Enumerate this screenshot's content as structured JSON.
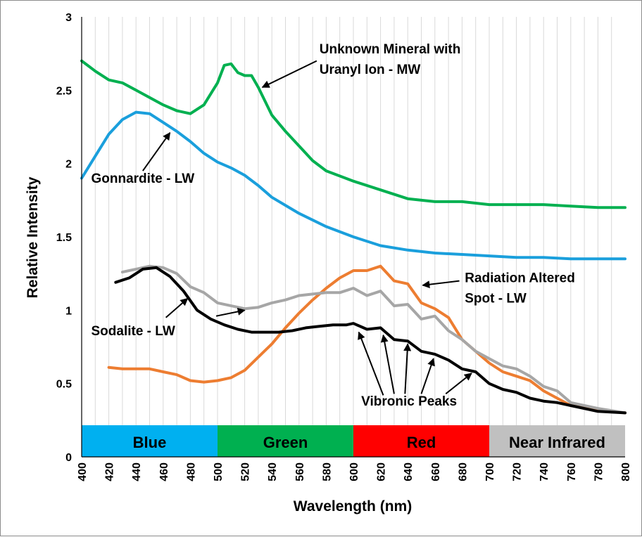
{
  "chart_data": {
    "type": "line",
    "title": "",
    "xlabel": "Wavelength (nm)",
    "ylabel": "Relative Intensity",
    "xlim": [
      400,
      800
    ],
    "ylim": [
      0,
      3
    ],
    "grid": "vertical",
    "x_ticks": [
      "400",
      "420",
      "440",
      "460",
      "480",
      "500",
      "520",
      "540",
      "560",
      "580",
      "600",
      "620",
      "640",
      "660",
      "680",
      "700",
      "720",
      "740",
      "760",
      "780",
      "800"
    ],
    "y_ticks": [
      "0",
      "0.5",
      "1",
      "1.5",
      "2",
      "2.5",
      "3"
    ],
    "bands": [
      {
        "label": "Blue",
        "from": 400,
        "to": 500,
        "color": "#00b0f0",
        "text_color": "#000000"
      },
      {
        "label": "Green",
        "from": 500,
        "to": 600,
        "color": "#00b050",
        "text_color": "#000000"
      },
      {
        "label": "Red",
        "from": 600,
        "to": 700,
        "color": "#ff0000",
        "text_color": "#000000"
      },
      {
        "label": "Near Infrared",
        "from": 700,
        "to": 800,
        "color": "#c0c0c0",
        "text_color": "#000000"
      }
    ],
    "series": [
      {
        "color": "#00b050",
        "points": [
          [
            400,
            2.7
          ],
          [
            410,
            2.63
          ],
          [
            420,
            2.57
          ],
          [
            430,
            2.55
          ],
          [
            440,
            2.5
          ],
          [
            450,
            2.45
          ],
          [
            460,
            2.4
          ],
          [
            470,
            2.36
          ],
          [
            480,
            2.34
          ],
          [
            490,
            2.4
          ],
          [
            500,
            2.55
          ],
          [
            505,
            2.67
          ],
          [
            510,
            2.68
          ],
          [
            515,
            2.62
          ],
          [
            520,
            2.6
          ],
          [
            525,
            2.6
          ],
          [
            530,
            2.52
          ],
          [
            540,
            2.33
          ],
          [
            550,
            2.22
          ],
          [
            560,
            2.12
          ],
          [
            570,
            2.02
          ],
          [
            580,
            1.95
          ],
          [
            600,
            1.88
          ],
          [
            620,
            1.82
          ],
          [
            640,
            1.76
          ],
          [
            660,
            1.74
          ],
          [
            680,
            1.74
          ],
          [
            700,
            1.72
          ],
          [
            720,
            1.72
          ],
          [
            740,
            1.72
          ],
          [
            760,
            1.71
          ],
          [
            780,
            1.7
          ],
          [
            800,
            1.7
          ]
        ]
      },
      {
        "color": "#1a9fdc",
        "points": [
          [
            400,
            1.9
          ],
          [
            410,
            2.05
          ],
          [
            420,
            2.2
          ],
          [
            430,
            2.3
          ],
          [
            440,
            2.35
          ],
          [
            450,
            2.34
          ],
          [
            460,
            2.28
          ],
          [
            470,
            2.22
          ],
          [
            480,
            2.15
          ],
          [
            490,
            2.07
          ],
          [
            500,
            2.01
          ],
          [
            510,
            1.97
          ],
          [
            520,
            1.92
          ],
          [
            530,
            1.85
          ],
          [
            540,
            1.77
          ],
          [
            560,
            1.66
          ],
          [
            580,
            1.57
          ],
          [
            600,
            1.5
          ],
          [
            620,
            1.44
          ],
          [
            640,
            1.41
          ],
          [
            660,
            1.39
          ],
          [
            680,
            1.38
          ],
          [
            700,
            1.37
          ],
          [
            720,
            1.36
          ],
          [
            740,
            1.36
          ],
          [
            760,
            1.35
          ],
          [
            780,
            1.35
          ],
          [
            800,
            1.35
          ]
        ]
      },
      {
        "color": "#ed7d31",
        "points": [
          [
            420,
            0.61
          ],
          [
            430,
            0.6
          ],
          [
            440,
            0.6
          ],
          [
            450,
            0.6
          ],
          [
            460,
            0.58
          ],
          [
            470,
            0.56
          ],
          [
            480,
            0.52
          ],
          [
            490,
            0.51
          ],
          [
            500,
            0.52
          ],
          [
            510,
            0.54
          ],
          [
            520,
            0.59
          ],
          [
            530,
            0.68
          ],
          [
            540,
            0.77
          ],
          [
            550,
            0.88
          ],
          [
            560,
            0.98
          ],
          [
            570,
            1.07
          ],
          [
            580,
            1.15
          ],
          [
            590,
            1.22
          ],
          [
            600,
            1.27
          ],
          [
            610,
            1.27
          ],
          [
            620,
            1.3
          ],
          [
            630,
            1.2
          ],
          [
            640,
            1.18
          ],
          [
            650,
            1.05
          ],
          [
            660,
            1.01
          ],
          [
            670,
            0.95
          ],
          [
            680,
            0.8
          ],
          [
            690,
            0.72
          ],
          [
            700,
            0.64
          ],
          [
            710,
            0.58
          ],
          [
            720,
            0.55
          ],
          [
            730,
            0.52
          ],
          [
            740,
            0.45
          ],
          [
            750,
            0.4
          ],
          [
            760,
            0.35
          ],
          [
            780,
            0.32
          ],
          [
            800,
            0.3
          ]
        ]
      },
      {
        "color": "#a6a6a6",
        "points": [
          [
            430,
            1.26
          ],
          [
            440,
            1.28
          ],
          [
            450,
            1.3
          ],
          [
            460,
            1.29
          ],
          [
            470,
            1.25
          ],
          [
            480,
            1.16
          ],
          [
            490,
            1.12
          ],
          [
            500,
            1.05
          ],
          [
            510,
            1.03
          ],
          [
            520,
            1.01
          ],
          [
            530,
            1.02
          ],
          [
            540,
            1.05
          ],
          [
            550,
            1.07
          ],
          [
            560,
            1.1
          ],
          [
            570,
            1.11
          ],
          [
            580,
            1.12
          ],
          [
            590,
            1.12
          ],
          [
            600,
            1.15
          ],
          [
            610,
            1.1
          ],
          [
            620,
            1.13
          ],
          [
            630,
            1.03
          ],
          [
            640,
            1.04
          ],
          [
            650,
            0.94
          ],
          [
            660,
            0.96
          ],
          [
            670,
            0.86
          ],
          [
            680,
            0.8
          ],
          [
            690,
            0.72
          ],
          [
            700,
            0.67
          ],
          [
            710,
            0.62
          ],
          [
            720,
            0.6
          ],
          [
            730,
            0.55
          ],
          [
            740,
            0.48
          ],
          [
            750,
            0.45
          ],
          [
            760,
            0.37
          ],
          [
            780,
            0.33
          ],
          [
            800,
            0.3
          ]
        ]
      },
      {
        "color": "#000000",
        "points": [
          [
            425,
            1.19
          ],
          [
            435,
            1.22
          ],
          [
            445,
            1.28
          ],
          [
            455,
            1.29
          ],
          [
            465,
            1.23
          ],
          [
            475,
            1.13
          ],
          [
            485,
            1.0
          ],
          [
            495,
            0.94
          ],
          [
            505,
            0.9
          ],
          [
            515,
            0.87
          ],
          [
            525,
            0.85
          ],
          [
            535,
            0.85
          ],
          [
            545,
            0.85
          ],
          [
            555,
            0.86
          ],
          [
            565,
            0.88
          ],
          [
            575,
            0.89
          ],
          [
            585,
            0.9
          ],
          [
            595,
            0.9
          ],
          [
            600,
            0.91
          ],
          [
            610,
            0.87
          ],
          [
            620,
            0.88
          ],
          [
            630,
            0.8
          ],
          [
            640,
            0.79
          ],
          [
            650,
            0.72
          ],
          [
            660,
            0.7
          ],
          [
            670,
            0.66
          ],
          [
            680,
            0.6
          ],
          [
            690,
            0.58
          ],
          [
            700,
            0.5
          ],
          [
            710,
            0.46
          ],
          [
            720,
            0.44
          ],
          [
            730,
            0.4
          ],
          [
            740,
            0.38
          ],
          [
            750,
            0.37
          ],
          [
            760,
            0.35
          ],
          [
            780,
            0.31
          ],
          [
            800,
            0.3
          ]
        ]
      }
    ],
    "annotations": [
      {
        "lines": [
          "Unknown Mineral with",
          "Uranyl Ion - MW"
        ],
        "at": [
          575,
          2.75
        ],
        "anchor": "start",
        "arrows": [
          [
            [
              573,
              2.7
            ],
            [
              533,
              2.52
            ]
          ]
        ]
      },
      {
        "lines": [
          "Gonnardite - LW"
        ],
        "at": [
          407,
          1.87
        ],
        "anchor": "start",
        "arrows": [
          [
            [
              445,
              1.95
            ],
            [
              465,
              2.21
            ]
          ]
        ]
      },
      {
        "lines": [
          "Radiation Altered",
          "Spot - LW"
        ],
        "at": [
          682,
          1.19
        ],
        "anchor": "start",
        "arrows": [
          [
            [
              678,
              1.2
            ],
            [
              651,
              1.17
            ]
          ]
        ]
      },
      {
        "lines": [
          "Sodalite - LW"
        ],
        "at": [
          407,
          0.83
        ],
        "anchor": "start",
        "arrows": [
          [
            [
              462,
              0.95
            ],
            [
              478,
              1.08
            ]
          ],
          [
            [
              499,
              0.96
            ],
            [
              520,
              1.0
            ]
          ]
        ]
      },
      {
        "lines": [
          "Vibronic Peaks"
        ],
        "at": [
          641,
          0.35
        ],
        "anchor": "middle",
        "arrows": [
          [
            [
              622,
              0.42
            ],
            [
              604,
              0.85
            ]
          ],
          [
            [
              630,
              0.43
            ],
            [
              622,
              0.83
            ]
          ],
          [
            [
              638,
              0.43
            ],
            [
              640,
              0.77
            ]
          ],
          [
            [
              650,
              0.43
            ],
            [
              659,
              0.67
            ]
          ],
          [
            [
              668,
              0.43
            ],
            [
              687,
              0.57
            ]
          ]
        ]
      }
    ]
  }
}
